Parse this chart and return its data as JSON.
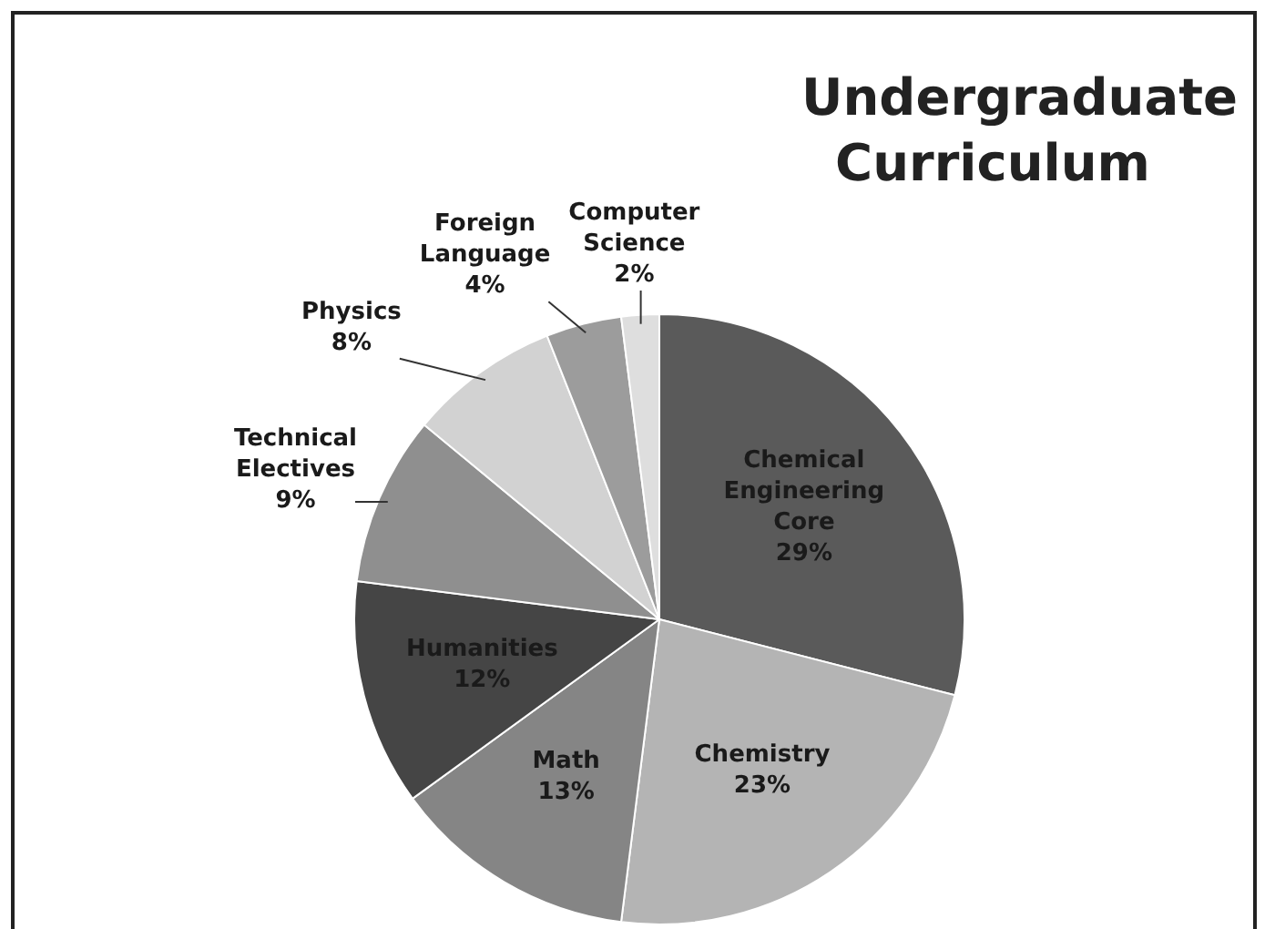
{
  "chart_data": {
    "type": "pie",
    "title": "Undergraduate Curriculum",
    "categories": [
      "Chemical Engineering Core",
      "Chemistry",
      "Math",
      "Humanities",
      "Technical Electives",
      "Physics",
      "Foreign Language",
      "Computer Science"
    ],
    "values": [
      29,
      23,
      13,
      12,
      9,
      8,
      4,
      2
    ],
    "value_labels": [
      "29%",
      "23%",
      "13%",
      "12%",
      "9%",
      "8%",
      "4%",
      "2%"
    ],
    "colors": [
      "#5a5a5a",
      "#b4b4b4",
      "#858585",
      "#454545",
      "#8f8f8f",
      "#d2d2d2",
      "#9c9c9c",
      "#dedede"
    ],
    "legend": false
  }
}
